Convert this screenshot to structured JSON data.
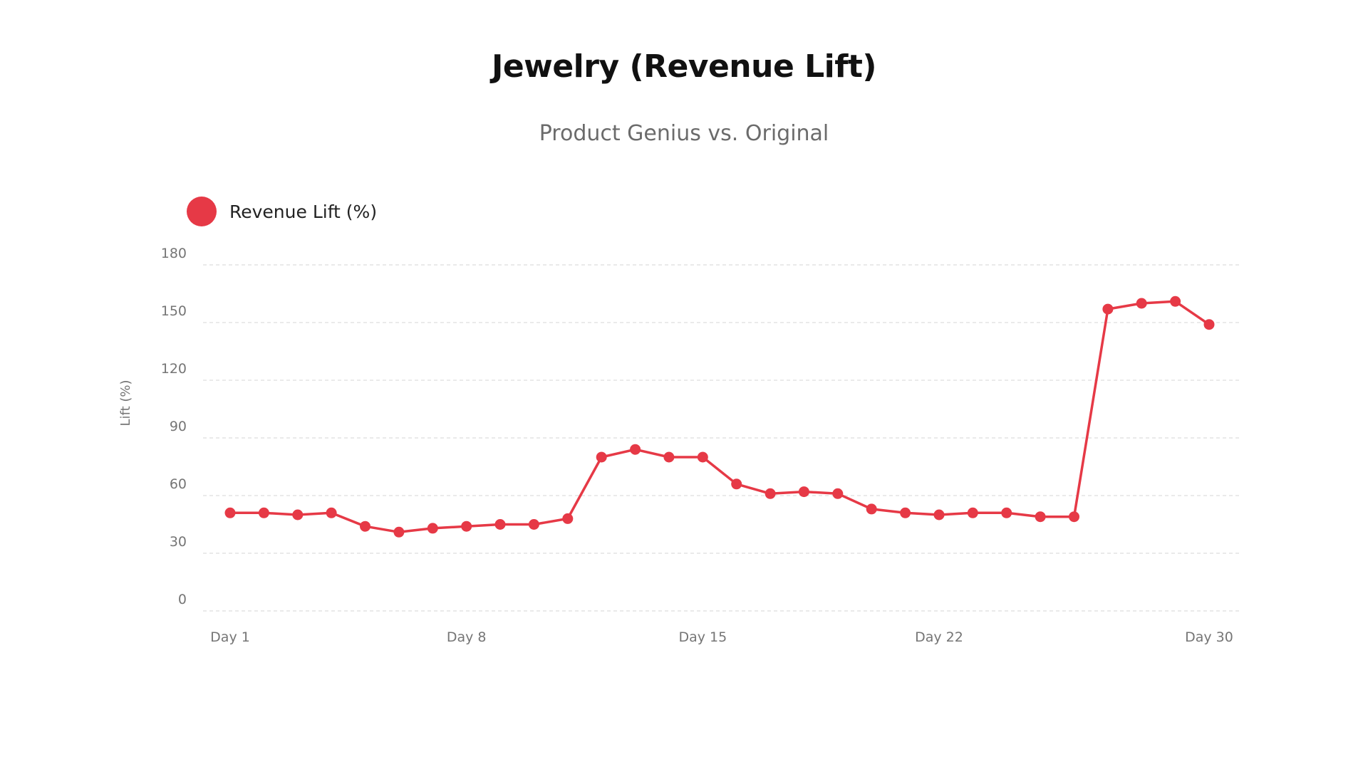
{
  "chart_data": {
    "type": "line",
    "title": "Jewelry (Revenue Lift)",
    "subtitle": "Product Genius vs. Original",
    "xlabel": "",
    "ylabel": "Lift (%)",
    "ylim": [
      0,
      180
    ],
    "yticks": [
      0,
      30,
      60,
      90,
      120,
      150,
      180
    ],
    "grid": true,
    "legend_position": "top-left",
    "x_tick_labels": [
      {
        "day": 1,
        "label": "Day 1"
      },
      {
        "day": 8,
        "label": "Day 8"
      },
      {
        "day": 15,
        "label": "Day 15"
      },
      {
        "day": 22,
        "label": "Day 22"
      },
      {
        "day": 30,
        "label": "Day 30"
      }
    ],
    "x": [
      1,
      2,
      3,
      4,
      5,
      6,
      7,
      8,
      9,
      10,
      11,
      12,
      13,
      14,
      15,
      16,
      17,
      18,
      19,
      20,
      21,
      22,
      23,
      24,
      25,
      26,
      27,
      28,
      29,
      30
    ],
    "series": [
      {
        "name": "Revenue Lift (%)",
        "color": "#e63946",
        "values": [
          51,
          51,
          50,
          51,
          44,
          41,
          43,
          44,
          45,
          45,
          48,
          80,
          84,
          80,
          80,
          66,
          61,
          62,
          61,
          53,
          51,
          50,
          51,
          51,
          49,
          49,
          157,
          160,
          161,
          149
        ]
      }
    ]
  }
}
